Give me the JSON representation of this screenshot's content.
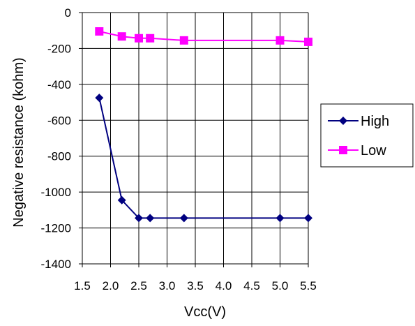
{
  "chart_data": {
    "type": "line",
    "xlabel": "Vcc(V)",
    "ylabel": "Negative resistance (kohm)",
    "xlim": [
      1.5,
      5.5
    ],
    "ylim": [
      -1400,
      0
    ],
    "x_ticks": [
      "1.5",
      "2.0",
      "2.5",
      "3.0",
      "3.5",
      "4.0",
      "4.5",
      "5.0",
      "5.5"
    ],
    "y_ticks": [
      "0",
      "-200",
      "-400",
      "-600",
      "-800",
      "-1000",
      "-1200",
      "-1400"
    ],
    "grid": true,
    "legend_position": "right",
    "series": [
      {
        "name": "High",
        "color": "#000080",
        "marker": "diamond",
        "points": [
          [
            1.8,
            -475
          ],
          [
            2.2,
            -1045
          ],
          [
            2.5,
            -1145
          ],
          [
            2.7,
            -1145
          ],
          [
            3.3,
            -1145
          ],
          [
            5.0,
            -1145
          ],
          [
            5.5,
            -1145
          ]
        ]
      },
      {
        "name": "Low",
        "color": "#ff00ff",
        "marker": "square",
        "points": [
          [
            1.8,
            -105
          ],
          [
            2.2,
            -133
          ],
          [
            2.5,
            -143
          ],
          [
            2.7,
            -143
          ],
          [
            3.3,
            -155
          ],
          [
            5.0,
            -155
          ],
          [
            5.5,
            -163
          ]
        ]
      }
    ]
  }
}
